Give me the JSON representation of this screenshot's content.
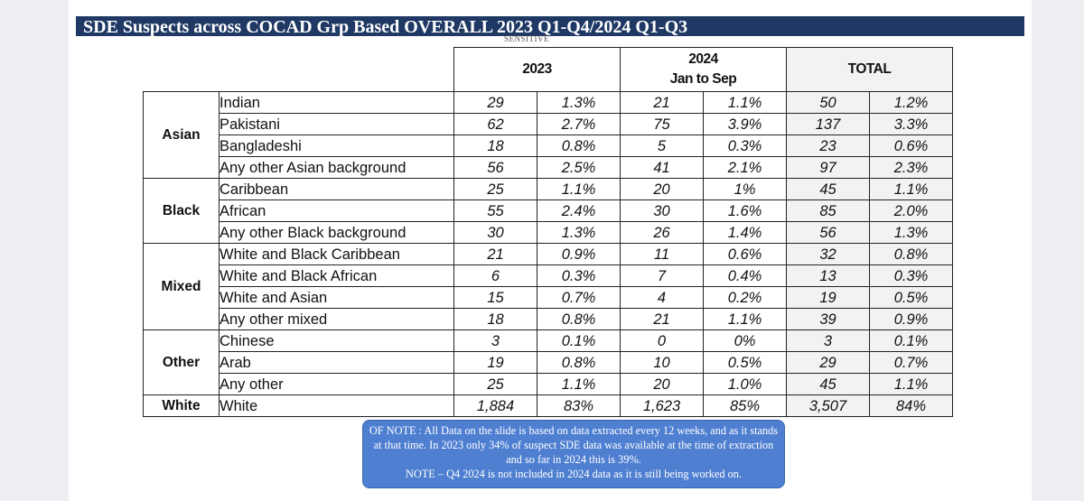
{
  "title": "SDE Suspects across COCAD Grp Based OVERALL 2023 Q1-Q4/2024 Q1-Q3",
  "classification": "SENSITIVE",
  "headers": {
    "col2023": "2023",
    "col2024_line1": "2024",
    "col2024_line2": "Jan to Sep",
    "total": "TOTAL"
  },
  "rows": [
    {
      "group": "Asian",
      "label": "Indian",
      "n2023": "29",
      "p2023": "1.3%",
      "n2024": "21",
      "p2024": "1.1%",
      "ntot": "50",
      "ptot": "1.2%"
    },
    {
      "group": "",
      "label": "Pakistani",
      "n2023": "62",
      "p2023": "2.7%",
      "n2024": "75",
      "p2024": "3.9%",
      "ntot": "137",
      "ptot": "3.3%"
    },
    {
      "group": "",
      "label": "Bangladeshi",
      "n2023": "18",
      "p2023": "0.8%",
      "n2024": "5",
      "p2024": "0.3%",
      "ntot": "23",
      "ptot": "0.6%"
    },
    {
      "group": "",
      "label": "Any other Asian background",
      "n2023": "56",
      "p2023": "2.5%",
      "n2024": "41",
      "p2024": "2.1%",
      "ntot": "97",
      "ptot": "2.3%"
    },
    {
      "group": "Black",
      "label": "Caribbean",
      "n2023": "25",
      "p2023": "1.1%",
      "n2024": "20",
      "p2024": "1%",
      "ntot": "45",
      "ptot": "1.1%"
    },
    {
      "group": "",
      "label": "African",
      "n2023": "55",
      "p2023": "2.4%",
      "n2024": "30",
      "p2024": "1.6%",
      "ntot": "85",
      "ptot": "2.0%"
    },
    {
      "group": "",
      "label": "Any other Black background",
      "n2023": "30",
      "p2023": "1.3%",
      "n2024": "26",
      "p2024": "1.4%",
      "ntot": "56",
      "ptot": "1.3%"
    },
    {
      "group": "Mixed",
      "label": "White and Black Caribbean",
      "n2023": "21",
      "p2023": "0.9%",
      "n2024": "11",
      "p2024": "0.6%",
      "ntot": "32",
      "ptot": "0.8%"
    },
    {
      "group": "",
      "label": "White and Black African",
      "n2023": "6",
      "p2023": "0.3%",
      "n2024": "7",
      "p2024": "0.4%",
      "ntot": "13",
      "ptot": "0.3%"
    },
    {
      "group": "",
      "label": "White and Asian",
      "n2023": "15",
      "p2023": "0.7%",
      "n2024": "4",
      "p2024": "0.2%",
      "ntot": "19",
      "ptot": "0.5%"
    },
    {
      "group": "",
      "label": "Any other mixed",
      "n2023": "18",
      "p2023": "0.8%",
      "n2024": "21",
      "p2024": "1.1%",
      "ntot": "39",
      "ptot": "0.9%"
    },
    {
      "group": "Other",
      "label": "Chinese",
      "n2023": "3",
      "p2023": "0.1%",
      "n2024": "0",
      "p2024": "0%",
      "ntot": "3",
      "ptot": "0.1%"
    },
    {
      "group": "",
      "label": "Arab",
      "n2023": "19",
      "p2023": "0.8%",
      "n2024": "10",
      "p2024": "0.5%",
      "ntot": "29",
      "ptot": "0.7%"
    },
    {
      "group": "",
      "label": "Any other",
      "n2023": "25",
      "p2023": "1.1%",
      "n2024": "20",
      "p2024": "1.0%",
      "ntot": "45",
      "ptot": "1.1%"
    },
    {
      "group": "White",
      "label": "White",
      "n2023": "1,884",
      "p2023": "83%",
      "n2024": "1,623",
      "p2024": "85%",
      "ntot": "3,507",
      "ptot": "84%"
    }
  ],
  "note": {
    "line1": "OF NOTE : All Data on the slide is based on data extracted every 12 weeks,  and as it stands at that time.  In 2023 only 34% of suspect SDE data was available at the time of extraction and so far in 2024 this is  39%.",
    "line2": "NOTE – Q4 2024 is not included in 2024 data as it is still being worked on."
  }
}
